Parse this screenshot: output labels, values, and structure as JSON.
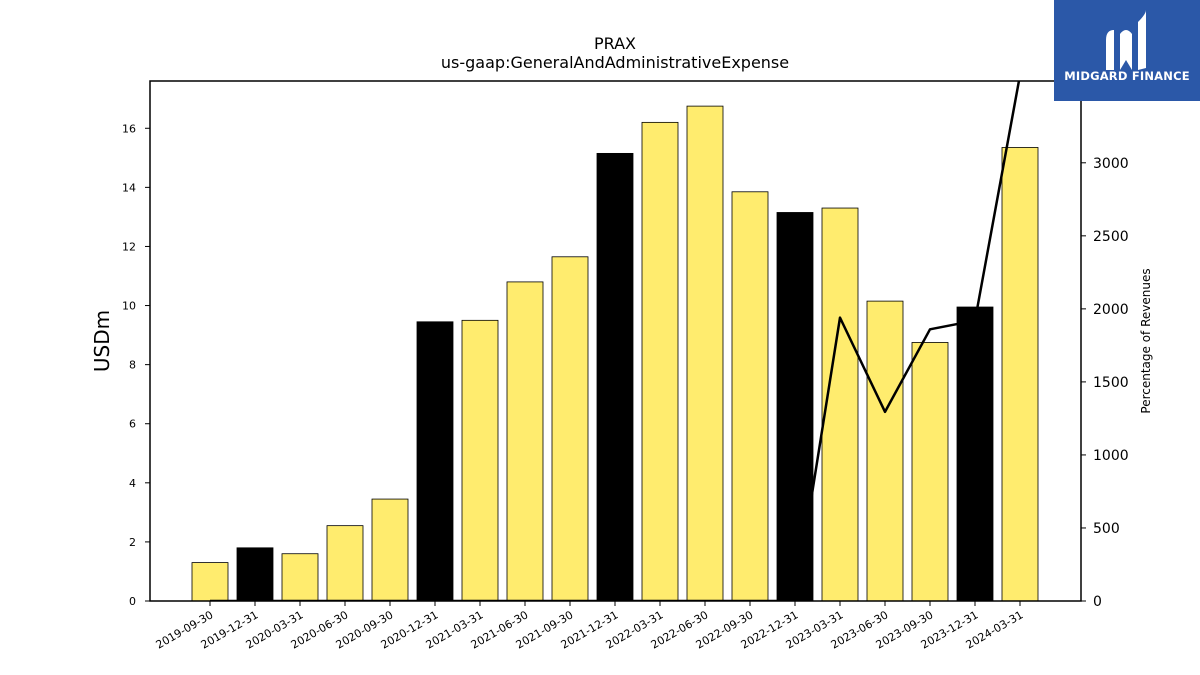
{
  "chart_data": {
    "type": "bar",
    "title": "PRAX",
    "subtitle": "us-gaap:GeneralAndAdministrativeExpense",
    "ylabel": "USDm",
    "y2label": "Percentage of Revenues",
    "ylim": [
      0,
      17.6
    ],
    "y2lim": [
      0,
      3560
    ],
    "yticks": [
      0,
      2,
      4,
      6,
      8,
      10,
      12,
      14,
      16
    ],
    "y2ticks": [
      0,
      500,
      1000,
      1500,
      2000,
      2500,
      3000
    ],
    "categories": [
      "2019-09-30",
      "2019-12-31",
      "2020-03-31",
      "2020-06-30",
      "2020-09-30",
      "2020-12-31",
      "2021-03-31",
      "2021-06-30",
      "2021-09-30",
      "2021-12-31",
      "2022-03-31",
      "2022-06-30",
      "2022-09-30",
      "2022-12-31",
      "2023-03-31",
      "2023-06-30",
      "2023-09-30",
      "2023-12-31",
      "2024-03-31"
    ],
    "series": [
      {
        "values": [
          1.3,
          1.8,
          1.6,
          2.55,
          3.45,
          9.45,
          9.5,
          10.8,
          11.65,
          15.15,
          16.2,
          16.75,
          13.85,
          13.15,
          13.3,
          10.15,
          8.75,
          9.95,
          15.35
        ],
        "quarter_end_year": [
          false,
          true,
          false,
          false,
          false,
          true,
          false,
          false,
          false,
          true,
          false,
          false,
          false,
          true,
          false,
          false,
          false,
          true,
          false
        ]
      },
      {
        "type": "line",
        "axis": "right",
        "values": [
          0,
          0,
          0,
          0,
          0,
          0,
          0,
          0,
          0,
          0,
          0,
          0,
          0,
          0,
          1940,
          1295,
          1860,
          1920,
          3600
        ]
      }
    ],
    "colors": {
      "bar": "#ffec6e",
      "bar_year_end": "#000000",
      "line": "#000000"
    }
  },
  "logo": {
    "text": "MIDGARD FINANCE",
    "background": "#2b58a8"
  }
}
